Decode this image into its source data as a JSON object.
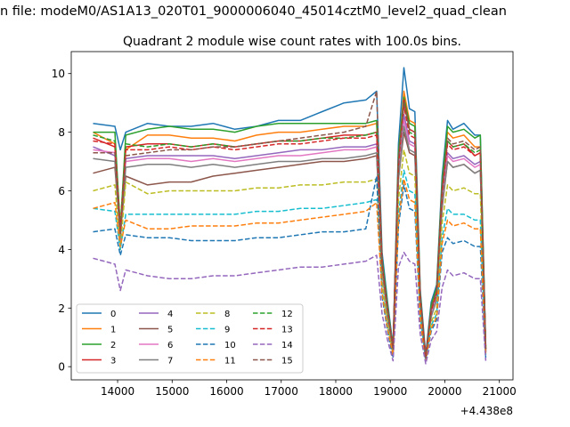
{
  "chart_data": {
    "type": "line",
    "suptitle": "n file: modeM0/AS1A13_020T01_9000006040_45014cztM0_level2_quad_clean",
    "title": "Quadrant 2 module wise count rates with 100.0s bins.",
    "offset_label": "+4.438e8",
    "xlabel": "",
    "ylabel": "",
    "xlim": [
      13150,
      21250
    ],
    "ylim": [
      -0.45,
      10.75
    ],
    "x_ticks": [
      14000,
      15000,
      16000,
      17000,
      18000,
      19000,
      20000,
      21000
    ],
    "y_ticks": [
      0,
      2,
      4,
      6,
      8,
      10
    ],
    "grid": false,
    "legend_position": "lower-left",
    "x": [
      13550,
      13950,
      14050,
      14150,
      14550,
      14950,
      15350,
      15750,
      16150,
      16550,
      16950,
      17350,
      17750,
      18150,
      18550,
      18750,
      18850,
      18950,
      19050,
      19150,
      19250,
      19350,
      19450,
      19550,
      19650,
      19750,
      19850,
      19950,
      20050,
      20150,
      20350,
      20550,
      20650,
      20750
    ],
    "series": [
      {
        "name": "0",
        "color": "#1f77b4",
        "dash": "solid",
        "values": [
          8.3,
          8.2,
          7.4,
          8.0,
          8.3,
          8.2,
          8.2,
          8.3,
          8.1,
          8.2,
          8.4,
          8.4,
          8.7,
          9.0,
          9.1,
          9.4,
          3.9,
          2.2,
          0.7,
          7.6,
          10.2,
          8.8,
          8.7,
          2.6,
          0.4,
          2.2,
          2.8,
          6.5,
          8.4,
          8.1,
          8.3,
          7.9,
          7.9,
          0.7
        ]
      },
      {
        "name": "1",
        "color": "#ff7f0e",
        "dash": "solid",
        "values": [
          8.0,
          7.6,
          4.4,
          7.4,
          7.9,
          7.9,
          7.8,
          7.8,
          7.7,
          7.9,
          8.0,
          8.0,
          8.1,
          8.2,
          8.2,
          8.3,
          3.6,
          2.0,
          0.6,
          7.2,
          9.4,
          8.4,
          8.3,
          2.4,
          0.3,
          2.0,
          2.6,
          6.2,
          8.0,
          7.8,
          7.9,
          7.5,
          7.5,
          0.6
        ]
      },
      {
        "name": "2",
        "color": "#2ca02c",
        "dash": "solid",
        "values": [
          8.0,
          8.0,
          4.7,
          7.9,
          8.1,
          8.2,
          8.1,
          8.1,
          8.0,
          8.2,
          8.3,
          8.3,
          8.3,
          8.3,
          8.3,
          8.4,
          3.7,
          2.1,
          0.6,
          7.3,
          9.2,
          8.3,
          8.2,
          2.5,
          0.3,
          2.1,
          2.7,
          6.3,
          8.2,
          8.0,
          8.1,
          7.8,
          7.9,
          0.6
        ]
      },
      {
        "name": "3",
        "color": "#d62728",
        "dash": "solid",
        "values": [
          7.8,
          7.5,
          4.6,
          7.5,
          7.6,
          7.6,
          7.5,
          7.6,
          7.5,
          7.6,
          7.7,
          7.7,
          7.8,
          7.9,
          7.9,
          8.0,
          3.5,
          1.9,
          0.6,
          7.0,
          9.1,
          8.1,
          8.0,
          2.3,
          0.3,
          1.9,
          2.5,
          6.0,
          7.7,
          7.5,
          7.6,
          7.2,
          7.3,
          0.6
        ]
      },
      {
        "name": "4",
        "color": "#9467bd",
        "dash": "solid",
        "values": [
          7.5,
          7.2,
          4.3,
          7.1,
          7.2,
          7.2,
          7.2,
          7.2,
          7.1,
          7.2,
          7.3,
          7.4,
          7.4,
          7.5,
          7.5,
          7.6,
          3.4,
          1.8,
          0.5,
          6.7,
          8.6,
          7.7,
          7.6,
          2.2,
          0.3,
          1.8,
          2.4,
          5.7,
          7.3,
          7.1,
          7.2,
          6.9,
          7.0,
          0.5
        ]
      },
      {
        "name": "5",
        "color": "#8c564b",
        "dash": "solid",
        "values": [
          6.6,
          6.8,
          4.5,
          6.5,
          6.2,
          6.3,
          6.3,
          6.5,
          6.6,
          6.7,
          6.8,
          6.9,
          7.0,
          7.0,
          7.1,
          7.2,
          3.3,
          1.7,
          0.5,
          6.4,
          8.0,
          7.3,
          7.2,
          2.1,
          0.2,
          1.7,
          2.3,
          5.4,
          7.0,
          6.8,
          6.9,
          6.6,
          6.7,
          0.5
        ]
      },
      {
        "name": "6",
        "color": "#e377c2",
        "dash": "solid",
        "values": [
          7.4,
          7.3,
          4.5,
          7.0,
          7.1,
          7.1,
          7.0,
          7.1,
          7.0,
          7.1,
          7.2,
          7.2,
          7.3,
          7.4,
          7.4,
          7.5,
          3.3,
          1.8,
          0.5,
          6.6,
          8.4,
          7.6,
          7.5,
          2.1,
          0.3,
          1.8,
          2.4,
          5.6,
          7.2,
          7.0,
          7.1,
          6.8,
          6.9,
          0.5
        ]
      },
      {
        "name": "7",
        "color": "#7f7f7f",
        "dash": "solid",
        "values": [
          7.1,
          7.0,
          4.4,
          6.8,
          6.9,
          6.9,
          6.8,
          6.9,
          6.8,
          6.9,
          7.0,
          7.0,
          7.1,
          7.1,
          7.2,
          7.3,
          3.2,
          1.7,
          0.5,
          6.4,
          8.2,
          7.4,
          7.3,
          2.1,
          0.2,
          1.7,
          2.3,
          5.5,
          7.0,
          6.8,
          6.9,
          6.6,
          6.7,
          0.5
        ]
      },
      {
        "name": "8",
        "color": "#bcbd22",
        "dash": "dashed",
        "values": [
          6.0,
          6.2,
          4.0,
          6.3,
          5.9,
          6.0,
          6.0,
          6.0,
          6.0,
          6.1,
          6.1,
          6.2,
          6.2,
          6.3,
          6.3,
          6.4,
          2.9,
          1.5,
          0.4,
          5.7,
          7.4,
          6.6,
          6.5,
          1.9,
          0.2,
          1.5,
          2.0,
          4.9,
          6.2,
          6.0,
          6.1,
          5.9,
          5.9,
          0.4
        ]
      },
      {
        "name": "9",
        "color": "#17becf",
        "dash": "dashed",
        "values": [
          5.4,
          5.3,
          4.0,
          5.2,
          5.2,
          5.2,
          5.2,
          5.2,
          5.2,
          5.3,
          5.3,
          5.4,
          5.4,
          5.5,
          5.6,
          5.7,
          2.6,
          1.4,
          0.4,
          5.2,
          6.7,
          6.0,
          5.9,
          1.7,
          0.2,
          1.4,
          1.8,
          4.4,
          5.4,
          5.2,
          5.2,
          5.0,
          5.0,
          0.4
        ]
      },
      {
        "name": "10",
        "color": "#1f77b4",
        "dash": "dashed",
        "values": [
          4.6,
          4.7,
          3.8,
          4.5,
          4.4,
          4.4,
          4.3,
          4.3,
          4.3,
          4.4,
          4.4,
          4.5,
          4.6,
          4.6,
          4.7,
          6.5,
          2.4,
          1.2,
          0.3,
          4.8,
          6.2,
          5.4,
          5.3,
          1.5,
          0.2,
          1.2,
          1.6,
          3.9,
          4.4,
          4.2,
          4.3,
          4.1,
          4.1,
          0.3
        ]
      },
      {
        "name": "11",
        "color": "#ff7f0e",
        "dash": "dashed",
        "values": [
          5.4,
          5.6,
          4.1,
          5.0,
          4.7,
          4.7,
          4.8,
          4.8,
          4.8,
          4.9,
          4.9,
          5.0,
          5.1,
          5.2,
          5.3,
          5.6,
          2.5,
          1.3,
          0.4,
          5.0,
          6.4,
          5.7,
          5.6,
          1.6,
          0.2,
          1.3,
          1.7,
          4.2,
          5.0,
          4.8,
          4.9,
          4.7,
          4.7,
          0.4
        ]
      },
      {
        "name": "12",
        "color": "#2ca02c",
        "dash": "dashed",
        "values": [
          7.9,
          7.7,
          4.8,
          7.6,
          7.5,
          7.6,
          7.5,
          7.6,
          7.5,
          7.6,
          7.7,
          7.7,
          7.8,
          7.8,
          7.9,
          8.0,
          3.5,
          1.9,
          0.6,
          7.0,
          9.0,
          8.0,
          7.9,
          2.3,
          0.3,
          1.9,
          2.5,
          6.0,
          7.7,
          7.5,
          7.6,
          7.3,
          7.4,
          0.6
        ]
      },
      {
        "name": "13",
        "color": "#d62728",
        "dash": "dashed",
        "values": [
          7.7,
          7.6,
          4.6,
          7.4,
          7.4,
          7.5,
          7.4,
          7.5,
          7.4,
          7.5,
          7.6,
          7.6,
          7.7,
          7.8,
          7.8,
          7.9,
          3.5,
          1.9,
          0.6,
          6.9,
          8.9,
          7.9,
          7.8,
          2.3,
          0.3,
          1.9,
          2.5,
          5.9,
          7.6,
          7.4,
          7.5,
          7.2,
          7.3,
          0.6
        ]
      },
      {
        "name": "14",
        "color": "#9467bd",
        "dash": "dashed",
        "values": [
          3.7,
          3.5,
          2.6,
          3.3,
          3.1,
          3.0,
          3.0,
          3.1,
          3.1,
          3.2,
          3.3,
          3.4,
          3.4,
          3.5,
          3.6,
          3.8,
          1.8,
          0.9,
          0.2,
          3.4,
          3.9,
          3.6,
          3.5,
          1.1,
          0.1,
          0.9,
          1.2,
          2.7,
          3.3,
          3.1,
          3.2,
          3.0,
          3.0,
          0.2
        ]
      },
      {
        "name": "15",
        "color": "#8c564b",
        "dash": "dashed",
        "values": [
          7.3,
          7.3,
          4.5,
          7.2,
          7.3,
          7.4,
          7.4,
          7.5,
          7.5,
          7.6,
          7.7,
          7.8,
          7.9,
          8.0,
          8.2,
          9.4,
          3.6,
          2.0,
          0.6,
          7.1,
          9.0,
          8.1,
          8.0,
          2.4,
          0.3,
          2.0,
          2.6,
          6.1,
          7.8,
          7.6,
          7.7,
          7.4,
          7.5,
          0.6
        ]
      }
    ]
  }
}
